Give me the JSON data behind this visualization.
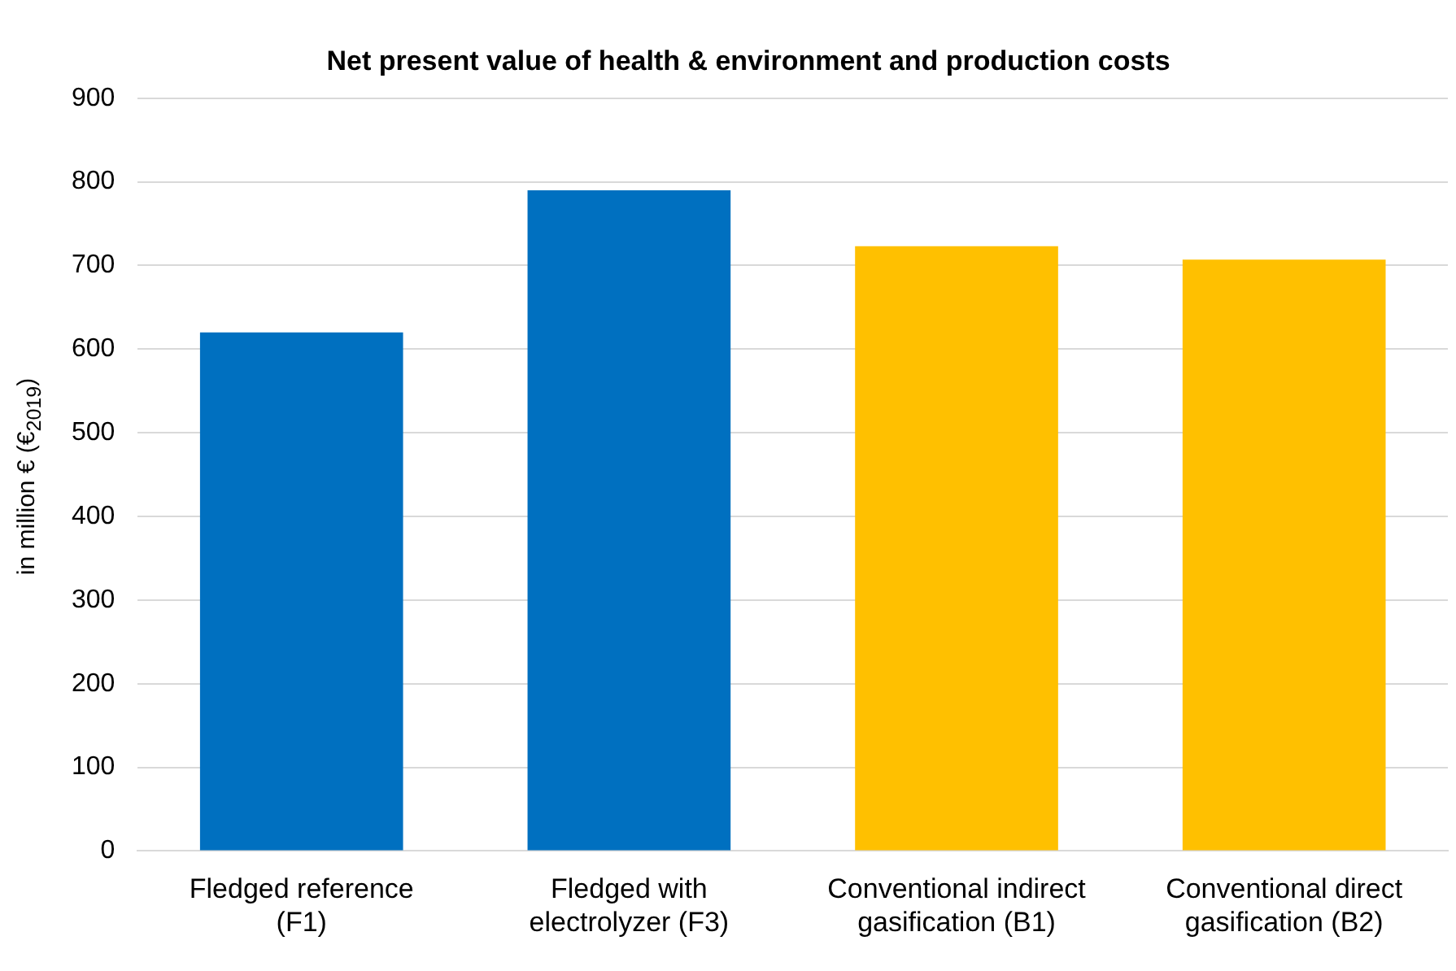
{
  "chart_data": {
    "type": "bar",
    "title": "Net present value of health & environment and production costs",
    "ylabel": "in million € (€$_{2019}$)",
    "categories": [
      "Fledged reference (F1)",
      "Fledged with electrolyzer (F3)",
      "Conventional indirect gasification (B1)",
      "Conventional direct gasification (B2)"
    ],
    "values": [
      620,
      790,
      723,
      707
    ],
    "colors": [
      "#0070c0",
      "#0070c0",
      "#ffc000",
      "#ffc000"
    ],
    "ylim": [
      0,
      900
    ],
    "yticks": [
      0,
      100,
      200,
      300,
      400,
      500,
      600,
      700,
      800,
      900
    ],
    "grid": "y",
    "legend": false
  }
}
